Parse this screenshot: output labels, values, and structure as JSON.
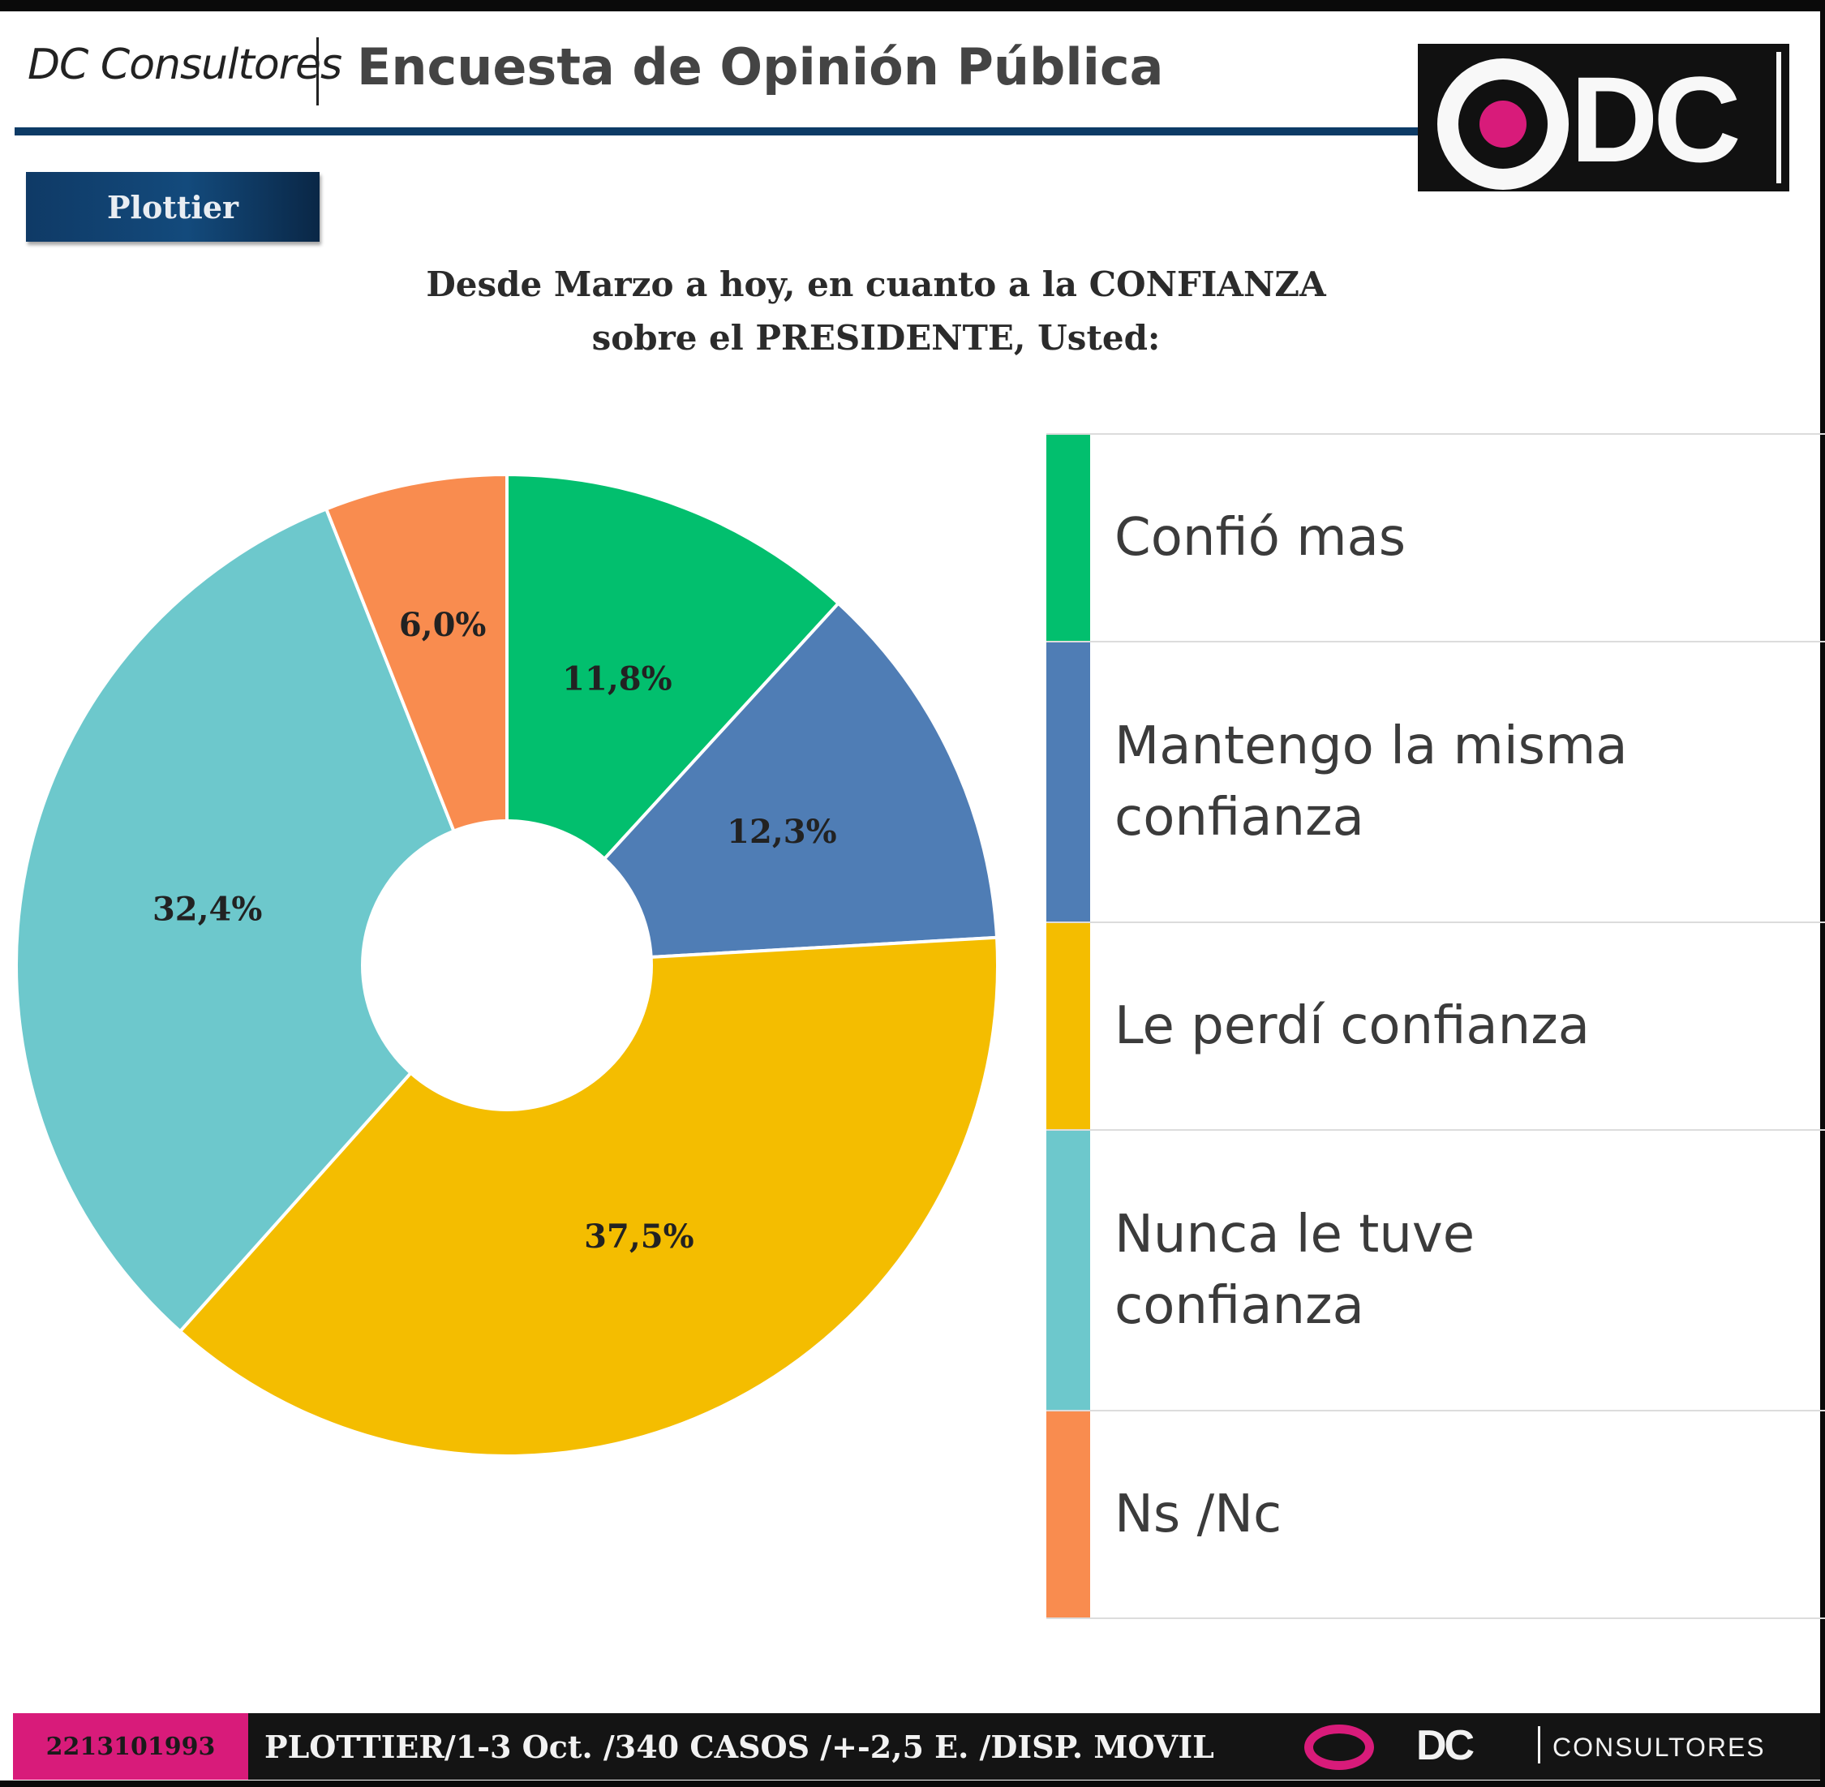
{
  "header": {
    "brand": "DC Consultores",
    "survey_title": "Encuesta de Opinión Pública",
    "logo_text": "DC"
  },
  "location": "Plottier",
  "question": {
    "line1": "Desde Marzo a hoy, en cuanto a la CONFIANZA",
    "line2": "sobre el PRESIDENTE, Usted:"
  },
  "chart_data": {
    "type": "pie",
    "donut": true,
    "title": "Desde Marzo a hoy, en cuanto a la CONFIANZA sobre el PRESIDENTE, Usted:",
    "slices": [
      {
        "label": "Confió mas",
        "value": 11.8,
        "display": "11,8%",
        "color": "#02bf6e"
      },
      {
        "label": "Mantengo la misma confianza",
        "value": 12.3,
        "display": "12,3%",
        "color": "#4f7db5"
      },
      {
        "label": "Le perdí confianza",
        "value": 37.5,
        "display": "37,5%",
        "color": "#f4bd00"
      },
      {
        "label": "Nunca le tuve confianza",
        "value": 32.4,
        "display": "32,4%",
        "color": "#6dc8cc"
      },
      {
        "label": "Ns /Nc",
        "value": 6.0,
        "display": "6,0%",
        "color": "#f98c4f"
      }
    ],
    "legend_position": "right"
  },
  "legend": {
    "items": [
      {
        "line1": "Confió mas",
        "line2": ""
      },
      {
        "line1": "Mantengo la misma",
        "line2": "confianza"
      },
      {
        "line1": "Le perdí confianza",
        "line2": ""
      },
      {
        "line1": "Nunca le tuve",
        "line2": "confianza"
      },
      {
        "line1": "Ns /Nc",
        "line2": ""
      }
    ]
  },
  "footer": {
    "phone": "2213101993",
    "info": "PLOTTIER/1-3 Oct. /340 CASOS /+-2,5 E. /DISP. MOVIL",
    "logo_text": "DC",
    "consultores": "CONSULTORES"
  }
}
